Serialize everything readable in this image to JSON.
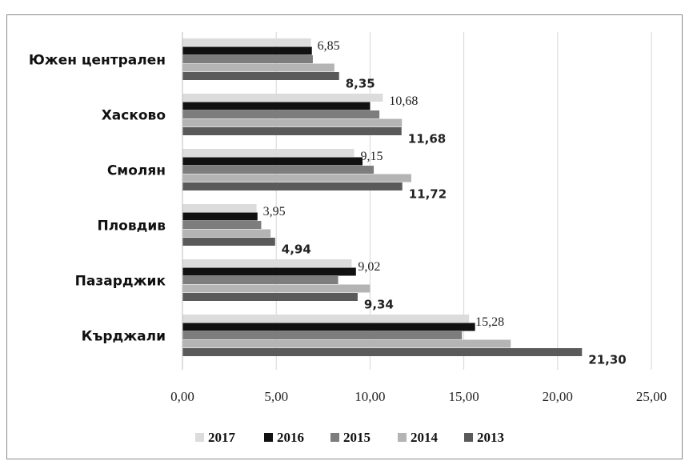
{
  "chart_data": {
    "type": "bar",
    "orientation": "horizontal",
    "categories": [
      "Южен централен",
      "Хасково",
      "Смолян",
      "Пловдив",
      "Пазарджик",
      "Кърджали"
    ],
    "series": [
      {
        "name": "2017",
        "color": "#dcdcdc",
        "values": [
          6.85,
          10.68,
          9.15,
          3.95,
          9.02,
          15.28
        ]
      },
      {
        "name": "2016",
        "color": "#111111",
        "values": [
          6.9,
          10.0,
          9.6,
          4.0,
          9.25,
          15.6
        ]
      },
      {
        "name": "2015",
        "color": "#7d7d7d",
        "values": [
          6.95,
          10.5,
          10.2,
          4.2,
          8.3,
          14.9
        ]
      },
      {
        "name": "2014",
        "color": "#b4b4b4",
        "values": [
          8.1,
          11.7,
          12.2,
          4.7,
          10.0,
          17.5
        ]
      },
      {
        "name": "2013",
        "color": "#5a5a5a",
        "values": [
          8.35,
          11.68,
          11.72,
          4.94,
          9.34,
          21.3
        ]
      }
    ],
    "labels_top": [
      "6,85",
      "10,68",
      "9,15",
      "3,95",
      "9,02",
      "15,28"
    ],
    "labels_bottom": [
      "8,35",
      "11,68",
      "11,72",
      "4,94",
      "9,34",
      "21,30"
    ],
    "x_ticks": [
      "0,00",
      "5,00",
      "10,00",
      "15,00",
      "20,00",
      "25,00"
    ],
    "xlim": [
      0,
      25
    ],
    "grid": true,
    "legend_position": "bottom",
    "legend_order": [
      "2017",
      "2016",
      "2015",
      "2014",
      "2013"
    ]
  }
}
